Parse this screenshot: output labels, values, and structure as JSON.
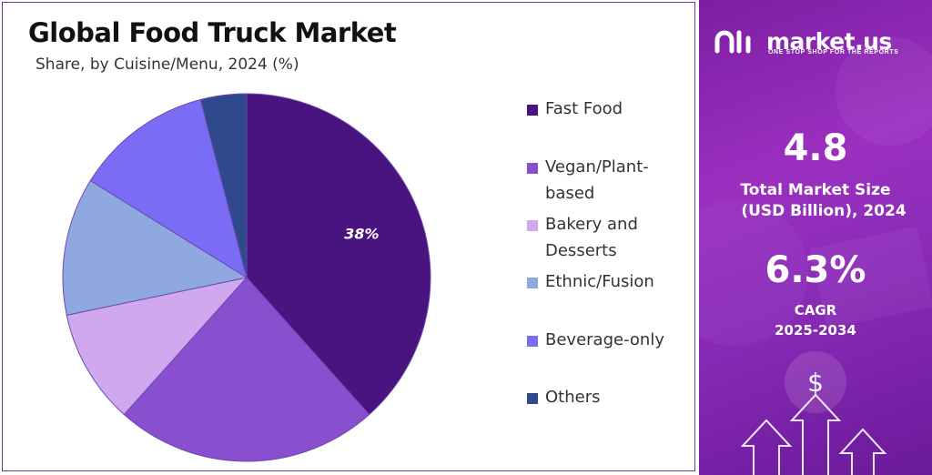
{
  "chart_data": {
    "type": "pie",
    "title": "Global Food Truck Market",
    "subtitle": "Share, by Cuisine/Menu, 2024 (%)",
    "categories": [
      "Fast Food",
      "Vegan/Plant-based",
      "Bakery and Desserts",
      "Ethnic/Fusion",
      "Beverage-only",
      "Others"
    ],
    "values": [
      38,
      23,
      10,
      12,
      12,
      4
    ],
    "data_labels": [
      "38%",
      "",
      "",
      "",
      "",
      ""
    ],
    "colors": [
      "#4a1480",
      "#8a4fcf",
      "#d0a8ee",
      "#8fa8e0",
      "#7b6cf5",
      "#2e4a8c"
    ],
    "legend_position": "right"
  },
  "legend_labels": {
    "fast_food": "Fast Food",
    "vegan_a": "Vegan/Plant-",
    "vegan_b": "based",
    "bakery_a": "Bakery and",
    "bakery_b": "Desserts",
    "ethnic": "Ethnic/Fusion",
    "beverage": "Beverage-only",
    "others": "Others"
  },
  "brand": {
    "name": "market.us",
    "tagline": "ONE STOP SHOP FOR THE REPORTS"
  },
  "stats": {
    "market_size_value": "4.8",
    "market_size_label_1": "Total Market Size",
    "market_size_label_2": "(USD Billion), 2024",
    "cagr_value": "6.3%",
    "cagr_label_1": "CAGR",
    "cagr_label_2": "2025-2034"
  },
  "icons": {
    "logo": "market-us-logo-icon",
    "dollar": "dollar-sign-icon",
    "arrows": "growth-arrows-icon"
  }
}
